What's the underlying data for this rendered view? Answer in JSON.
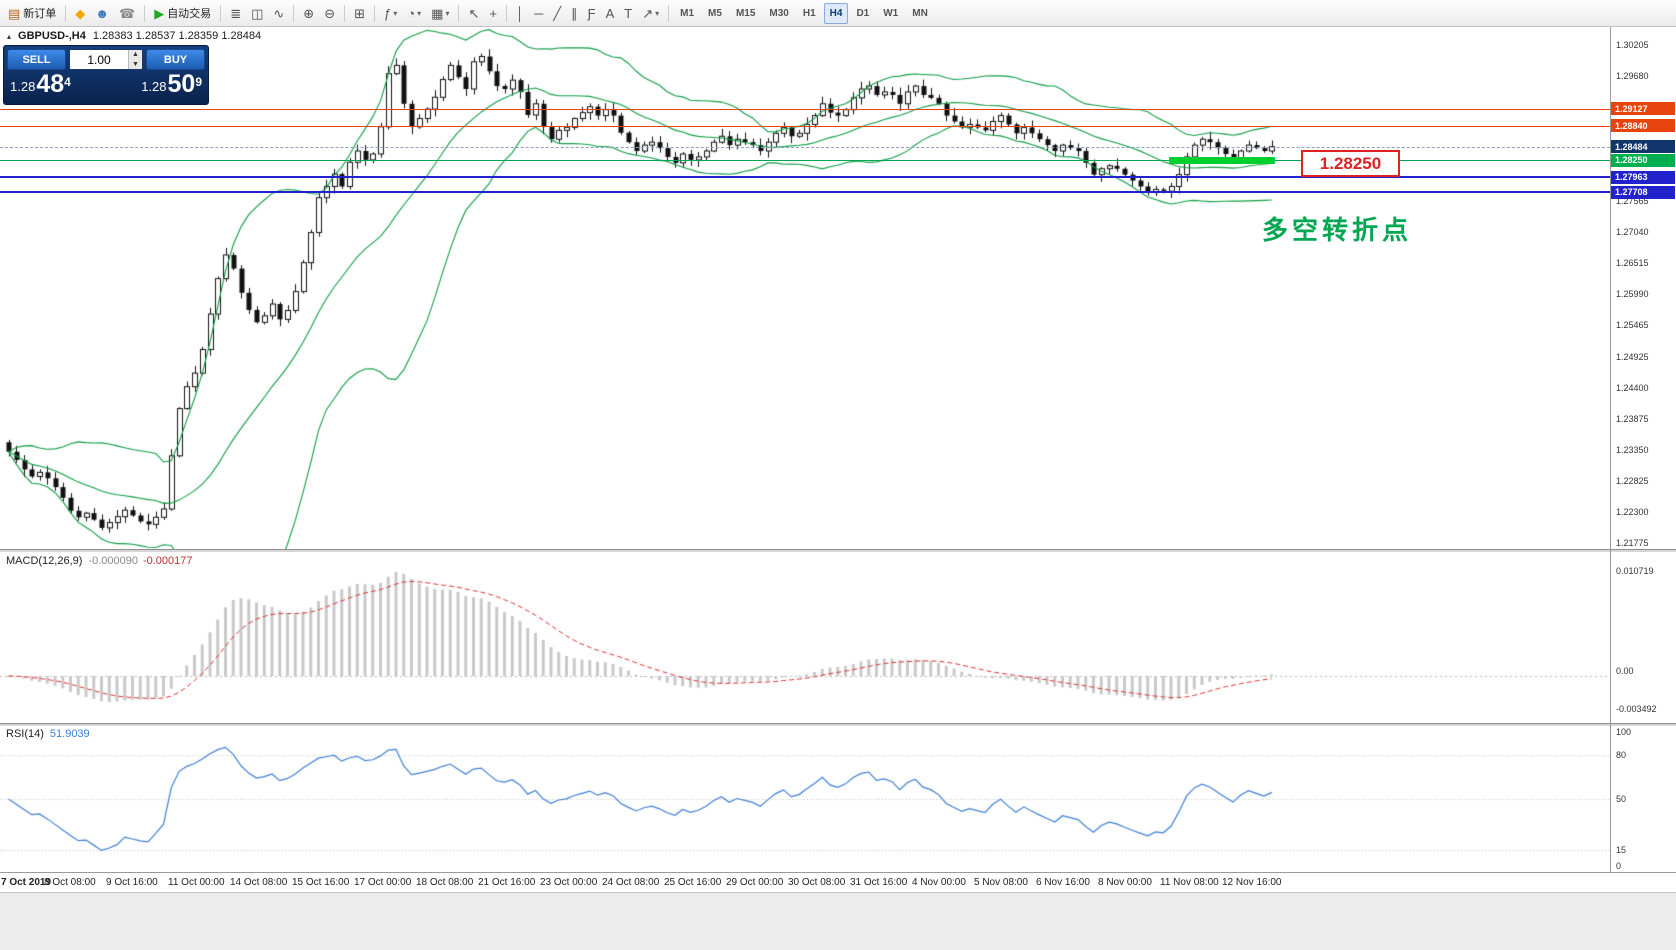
{
  "toolbar": {
    "groups": [
      {
        "items": [
          {
            "name": "new-order-button",
            "glyph": "▤",
            "glyph_color": "#b5651d",
            "label": "新订单"
          }
        ]
      },
      {
        "items": [
          {
            "name": "mql5-community-icon",
            "glyph": "◆",
            "glyph_color": "#f0a800"
          },
          {
            "name": "profile-icon",
            "glyph": "☻",
            "glyph_color": "#3a77c2"
          },
          {
            "name": "support-icon",
            "glyph": "☎",
            "glyph_color": "#888888"
          }
        ]
      },
      {
        "items": [
          {
            "name": "autotrading-button",
            "glyph": "▶",
            "glyph_color": "#21aa21",
            "label": "自动交易"
          }
        ]
      },
      {
        "items": [
          {
            "name": "bar-chart-mode-icon",
            "glyph": "≣"
          },
          {
            "name": "candlestick-mode-icon",
            "glyph": "◫"
          },
          {
            "name": "line-chart-mode-icon",
            "glyph": "∿"
          }
        ]
      },
      {
        "items": [
          {
            "name": "zoom-in-icon",
            "glyph": "⊕"
          },
          {
            "name": "zoom-out-icon",
            "glyph": "⊖"
          }
        ]
      },
      {
        "items": [
          {
            "name": "tile-windows-icon",
            "glyph": "⊞"
          }
        ]
      },
      {
        "items": [
          {
            "name": "indicators-menu-icon",
            "glyph": "ƒ",
            "caret": true
          },
          {
            "name": "periods-menu-icon",
            "glyph": "◔",
            "caret": true
          },
          {
            "name": "templates-menu-icon",
            "glyph": "▦",
            "caret": true
          }
        ]
      },
      {
        "items": [
          {
            "name": "cursor-icon",
            "glyph": "↖"
          },
          {
            "name": "crosshair-icon",
            "glyph": "+"
          }
        ]
      },
      {
        "items": [
          {
            "name": "vertical-line-icon",
            "glyph": "│"
          },
          {
            "name": "horizontal-line-icon",
            "glyph": "─"
          },
          {
            "name": "trendline-icon",
            "glyph": "╱"
          },
          {
            "name": "channel-icon",
            "glyph": "∥"
          },
          {
            "name": "fibonacci-icon",
            "glyph": "Ƒ"
          },
          {
            "name": "text-icon",
            "glyph": "A"
          },
          {
            "name": "label-icon",
            "glyph": "T"
          },
          {
            "name": "arrow-objects-icon",
            "glyph": "↗",
            "caret": true
          }
        ]
      },
      {
        "items": [
          {
            "name": "timeframe-m1-button",
            "label": "M1",
            "tf": true
          },
          {
            "name": "timeframe-m5-button",
            "label": "M5",
            "tf": true
          },
          {
            "name": "timeframe-m15-button",
            "label": "M15",
            "tf": true
          },
          {
            "name": "timeframe-m30-button",
            "label": "M30",
            "tf": true
          },
          {
            "name": "timeframe-h1-button",
            "label": "H1",
            "tf": true
          },
          {
            "name": "timeframe-h4-button",
            "label": "H4",
            "tf": true,
            "active": true
          },
          {
            "name": "timeframe-d1-button",
            "label": "D1",
            "tf": true
          },
          {
            "name": "timeframe-w1-button",
            "label": "W1",
            "tf": true
          },
          {
            "name": "timeframe-mn-button",
            "label": "MN",
            "tf": true
          }
        ]
      }
    ]
  },
  "chart": {
    "symbol": "GBPUSD-,H4",
    "ohlc": "1.28383 1.28537 1.28359 1.28484",
    "trade_panel": {
      "sell_label": "SELL",
      "buy_label": "BUY",
      "volume": "1.00",
      "price_prefix": "1.28",
      "sell_big": "48",
      "sell_sup": "4",
      "buy_big": "50",
      "buy_sup": "9"
    },
    "levels": [
      {
        "name": "resistance-line-1",
        "price": 1.29127,
        "label": "1.29127",
        "color": "#e8440e",
        "thickness": 1
      },
      {
        "name": "resistance-line-2",
        "price": 1.2884,
        "label": "1.28840",
        "color": "#e8440e",
        "thickness": 1
      },
      {
        "name": "pivot-line",
        "price": 1.2825,
        "label": "1.28250",
        "color": "#00a651",
        "thickness": 1,
        "tag_bg": "#00b050"
      },
      {
        "name": "support-line-1",
        "price": 1.27963,
        "label": "1.27963",
        "color": "#2222cc",
        "thickness": 2
      },
      {
        "name": "support-line-2",
        "price": 1.27708,
        "label": "1.27708",
        "color": "#2222cc",
        "thickness": 2
      }
    ],
    "current_price": {
      "label": "1.28484",
      "price": 1.28484,
      "tag_bg": "#12356b"
    },
    "highlight": {
      "price": 1.2825,
      "from_bar": 150,
      "to_bar": 163,
      "color": "#00d02e"
    },
    "callout_text": "1.28250",
    "annotation_text": "多空转折点",
    "axis_ticks": [
      "1.30205",
      "1.29680",
      "1.29160",
      "1.27565",
      "1.27040",
      "1.26515",
      "1.25990",
      "1.25465",
      "1.24925",
      "1.24400",
      "1.23875",
      "1.23350",
      "1.22825",
      "1.22300",
      "1.21775"
    ]
  },
  "indicators": {
    "macd": {
      "name": "MACD(12,26,9)",
      "value1": "-0.000090",
      "value2": "-0.000177",
      "scale_top": "0.010719",
      "scale_zero": "0.00",
      "scale_bottom": "-0.003492"
    },
    "rsi": {
      "name": "RSI(14)",
      "value": "51.9039",
      "scale": [
        {
          "text": "100",
          "v": 100
        },
        {
          "text": "80",
          "v": 80
        },
        {
          "text": "50",
          "v": 50
        },
        {
          "text": "15",
          "v": 15
        },
        {
          "text": "0",
          "v": 0
        }
      ],
      "levels": [
        80,
        50,
        15
      ]
    }
  },
  "chart_data": {
    "type": "candlestick",
    "symbol": "GBPUSD-",
    "timeframe": "H4",
    "ohlc_display": {
      "open": "1.28383",
      "high": "1.28537",
      "low": "1.28359",
      "close": "1.28484"
    },
    "price_axis_range": {
      "top": 1.30205,
      "bottom": 1.21775
    },
    "overlays": [
      {
        "name": "Bollinger Bands",
        "period": 20,
        "deviation": 2,
        "color": "#0f9d44"
      }
    ],
    "first_open": 1.2348,
    "closes": [
      1.2332,
      1.2318,
      1.2302,
      1.229,
      1.2297,
      1.2287,
      1.2272,
      1.2254,
      1.2232,
      1.2221,
      1.2228,
      1.2217,
      1.2203,
      1.2212,
      1.2222,
      1.2233,
      1.2224,
      1.2214,
      1.2209,
      1.2221,
      1.2235,
      1.2325,
      1.2405,
      1.2442,
      1.2465,
      1.2505,
      1.2565,
      1.2625,
      1.2665,
      1.2642,
      1.2601,
      1.2572,
      1.2551,
      1.2562,
      1.2582,
      1.2556,
      1.2571,
      1.2603,
      1.2652,
      1.2703,
      1.2762,
      1.2781,
      1.2802,
      1.2781,
      1.2822,
      1.2841,
      1.2826,
      1.2836,
      1.2882,
      1.2972,
      1.2986,
      1.2921,
      1.2882,
      1.2896,
      1.2912,
      1.2932,
      1.2962,
      1.2986,
      1.2966,
      1.2946,
      1.2992,
      1.3001,
      1.2976,
      1.2951,
      1.2946,
      1.2961,
      1.2941,
      1.2902,
      1.2921,
      1.2882,
      1.2861,
      1.2876,
      1.2881,
      1.2896,
      1.2906,
      1.2916,
      1.2901,
      1.2911,
      1.2901,
      1.2872,
      1.2856,
      1.2841,
      1.2851,
      1.2856,
      1.2846,
      1.2831,
      1.2821,
      1.2836,
      1.2826,
      1.2831,
      1.2841,
      1.2856,
      1.2866,
      1.2851,
      1.2861,
      1.2856,
      1.2851,
      1.2841,
      1.2856,
      1.2871,
      1.2881,
      1.2866,
      1.2871,
      1.2886,
      1.2901,
      1.2921,
      1.2906,
      1.2901,
      1.2911,
      1.2931,
      1.2946,
      1.2951,
      1.2936,
      1.2941,
      1.2936,
      1.2921,
      1.2941,
      1.2951,
      1.2936,
      1.2931,
      1.2921,
      1.2901,
      1.2891,
      1.2881,
      1.2886,
      1.2881,
      1.2876,
      1.2891,
      1.2901,
      1.2886,
      1.2871,
      1.2881,
      1.2871,
      1.2861,
      1.2851,
      1.2841,
      1.2851,
      1.2846,
      1.2841,
      1.2821,
      1.2801,
      1.2811,
      1.2816,
      1.2811,
      1.2801,
      1.2791,
      1.2781,
      1.2771,
      1.2776,
      1.2773,
      1.2781,
      1.2801,
      1.2831,
      1.2851,
      1.2861,
      1.2856,
      1.2846,
      1.2836,
      1.2826,
      1.2841,
      1.2851,
      1.2846,
      1.2841,
      1.28484
    ],
    "time_labels": [
      {
        "text": "7 Oct 2019",
        "bar": 0,
        "bold": true
      },
      {
        "text": "8 Oct 08:00",
        "bar": 8
      },
      {
        "text": "9 Oct 16:00",
        "bar": 16
      },
      {
        "text": "11 Oct 00:00",
        "bar": 24
      },
      {
        "text": "14 Oct 08:00",
        "bar": 32
      },
      {
        "text": "15 Oct 16:00",
        "bar": 40
      },
      {
        "text": "17 Oct 00:00",
        "bar": 48
      },
      {
        "text": "18 Oct 08:00",
        "bar": 56
      },
      {
        "text": "21 Oct 16:00",
        "bar": 64
      },
      {
        "text": "23 Oct 00:00",
        "bar": 72
      },
      {
        "text": "24 Oct 08:00",
        "bar": 80
      },
      {
        "text": "25 Oct 16:00",
        "bar": 88
      },
      {
        "text": "29 Oct 00:00",
        "bar": 96
      },
      {
        "text": "30 Oct 08:00",
        "bar": 104
      },
      {
        "text": "31 Oct 16:00",
        "bar": 112
      },
      {
        "text": "4 Nov 00:00",
        "bar": 120
      },
      {
        "text": "5 Nov 08:00",
        "bar": 128
      },
      {
        "text": "6 Nov 16:00",
        "bar": 136
      },
      {
        "text": "8 Nov 00:00",
        "bar": 144
      },
      {
        "text": "11 Nov 08:00",
        "bar": 152
      },
      {
        "text": "12 Nov 16:00",
        "bar": 160
      }
    ]
  }
}
